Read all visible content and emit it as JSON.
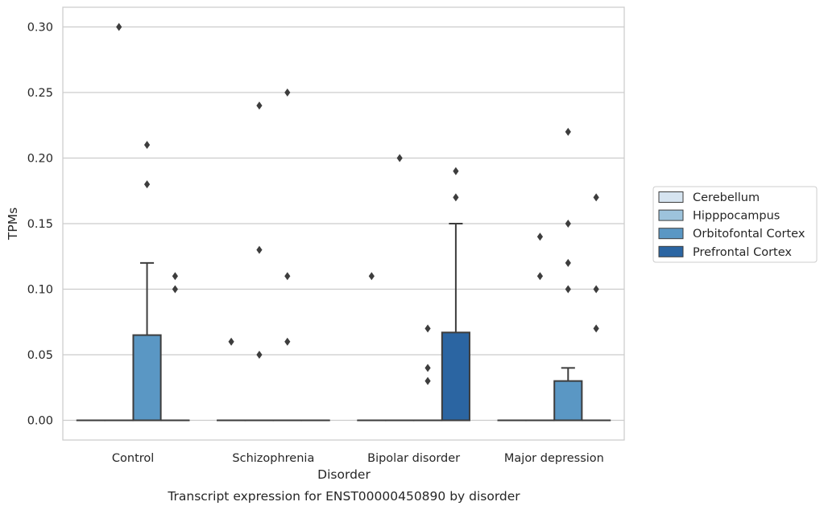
{
  "chart_data": {
    "type": "box",
    "title": "Transcript expression for ENST00000450890 by disorder",
    "xlabel": "Disorder",
    "ylabel": "TPMs",
    "ylim": [
      -0.015,
      0.315
    ],
    "yticks": [
      0.0,
      0.05,
      0.1,
      0.15,
      0.2,
      0.25,
      0.3
    ],
    "ytick_labels": [
      "0.00",
      "0.05",
      "0.10",
      "0.15",
      "0.20",
      "0.25",
      "0.30"
    ],
    "grid": "horizontal",
    "legend_position": "right",
    "categories": [
      "Control",
      "Schizophrenia",
      "Bipolar disorder",
      "Major depression"
    ],
    "series": [
      {
        "name": "Cerebellum",
        "color": "#d6e4f0",
        "boxes": [
          {
            "category": "Control",
            "q1": 0,
            "median": 0,
            "q3": 0,
            "whisker_low": 0,
            "whisker_high": 0,
            "outliers": []
          },
          {
            "category": "Schizophrenia",
            "q1": 0,
            "median": 0,
            "q3": 0,
            "whisker_low": 0,
            "whisker_high": 0,
            "outliers": [
              0.06
            ]
          },
          {
            "category": "Bipolar disorder",
            "q1": 0,
            "median": 0,
            "q3": 0,
            "whisker_low": 0,
            "whisker_high": 0,
            "outliers": [
              0.11
            ]
          },
          {
            "category": "Major depression",
            "q1": 0,
            "median": 0,
            "q3": 0,
            "whisker_low": 0,
            "whisker_high": 0,
            "outliers": []
          }
        ]
      },
      {
        "name": "Hipppocampus",
        "color": "#9dc3dc",
        "boxes": [
          {
            "category": "Control",
            "q1": 0,
            "median": 0,
            "q3": 0,
            "whisker_low": 0,
            "whisker_high": 0,
            "outliers": [
              0.3
            ]
          },
          {
            "category": "Schizophrenia",
            "q1": 0,
            "median": 0,
            "q3": 0,
            "whisker_low": 0,
            "whisker_high": 0,
            "outliers": [
              0.05,
              0.13,
              0.24
            ]
          },
          {
            "category": "Bipolar disorder",
            "q1": 0,
            "median": 0,
            "q3": 0,
            "whisker_low": 0,
            "whisker_high": 0,
            "outliers": [
              0.2
            ]
          },
          {
            "category": "Major depression",
            "q1": 0,
            "median": 0,
            "q3": 0,
            "whisker_low": 0,
            "whisker_high": 0,
            "outliers": [
              0.11,
              0.14
            ]
          }
        ]
      },
      {
        "name": "Orbitofontal Cortex",
        "color": "#5a97c4",
        "boxes": [
          {
            "category": "Control",
            "q1": 0,
            "median": 0,
            "q3": 0.065,
            "whisker_low": 0,
            "whisker_high": 0.12,
            "outliers": [
              0.18,
              0.21
            ]
          },
          {
            "category": "Schizophrenia",
            "q1": 0,
            "median": 0,
            "q3": 0,
            "whisker_low": 0,
            "whisker_high": 0,
            "outliers": [
              0.25,
              0.11,
              0.06
            ]
          },
          {
            "category": "Bipolar disorder",
            "q1": 0,
            "median": 0,
            "q3": 0,
            "whisker_low": 0,
            "whisker_high": 0,
            "outliers": [
              0.07,
              0.04,
              0.03
            ]
          },
          {
            "category": "Major depression",
            "q1": 0,
            "median": 0,
            "q3": 0.03,
            "whisker_low": 0,
            "whisker_high": 0.04,
            "outliers": [
              0.22,
              0.15,
              0.12,
              0.1
            ]
          }
        ]
      },
      {
        "name": "Prefrontal Cortex",
        "color": "#2b65a2",
        "boxes": [
          {
            "category": "Control",
            "q1": 0,
            "median": 0,
            "q3": 0,
            "whisker_low": 0,
            "whisker_high": 0,
            "outliers": [
              0.11,
              0.1
            ]
          },
          {
            "category": "Schizophrenia",
            "q1": 0,
            "median": 0,
            "q3": 0,
            "whisker_low": 0,
            "whisker_high": 0,
            "outliers": []
          },
          {
            "category": "Bipolar disorder",
            "q1": 0,
            "median": 0,
            "q3": 0.067,
            "whisker_low": 0,
            "whisker_high": 0.15,
            "outliers": [
              0.19,
              0.17
            ]
          },
          {
            "category": "Major depression",
            "q1": 0,
            "median": 0,
            "q3": 0,
            "whisker_low": 0,
            "whisker_high": 0,
            "outliers": [
              0.17,
              0.1,
              0.07
            ]
          }
        ]
      }
    ]
  }
}
